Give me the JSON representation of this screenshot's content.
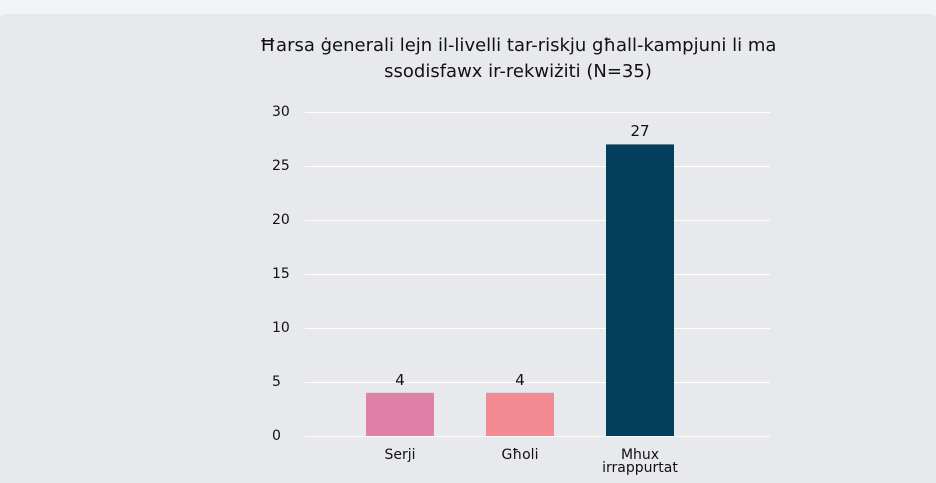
{
  "chart_data": {
    "type": "bar",
    "title": "Ħarsa ġenerali lejn il-livelli tar-riskju għall-kampjuni li ma ssodisfawx ir-rekwiżiti (N=35)",
    "categories": [
      "Serji",
      "Għoli",
      "Mhux irrappurtat"
    ],
    "values": [
      4,
      4,
      27
    ],
    "colors": [
      "#e07fa8",
      "#f28a92",
      "#033f5c"
    ],
    "ylim": [
      0,
      30
    ],
    "yticks": [
      0,
      5,
      10,
      15,
      20,
      25,
      30
    ],
    "grid": true
  }
}
